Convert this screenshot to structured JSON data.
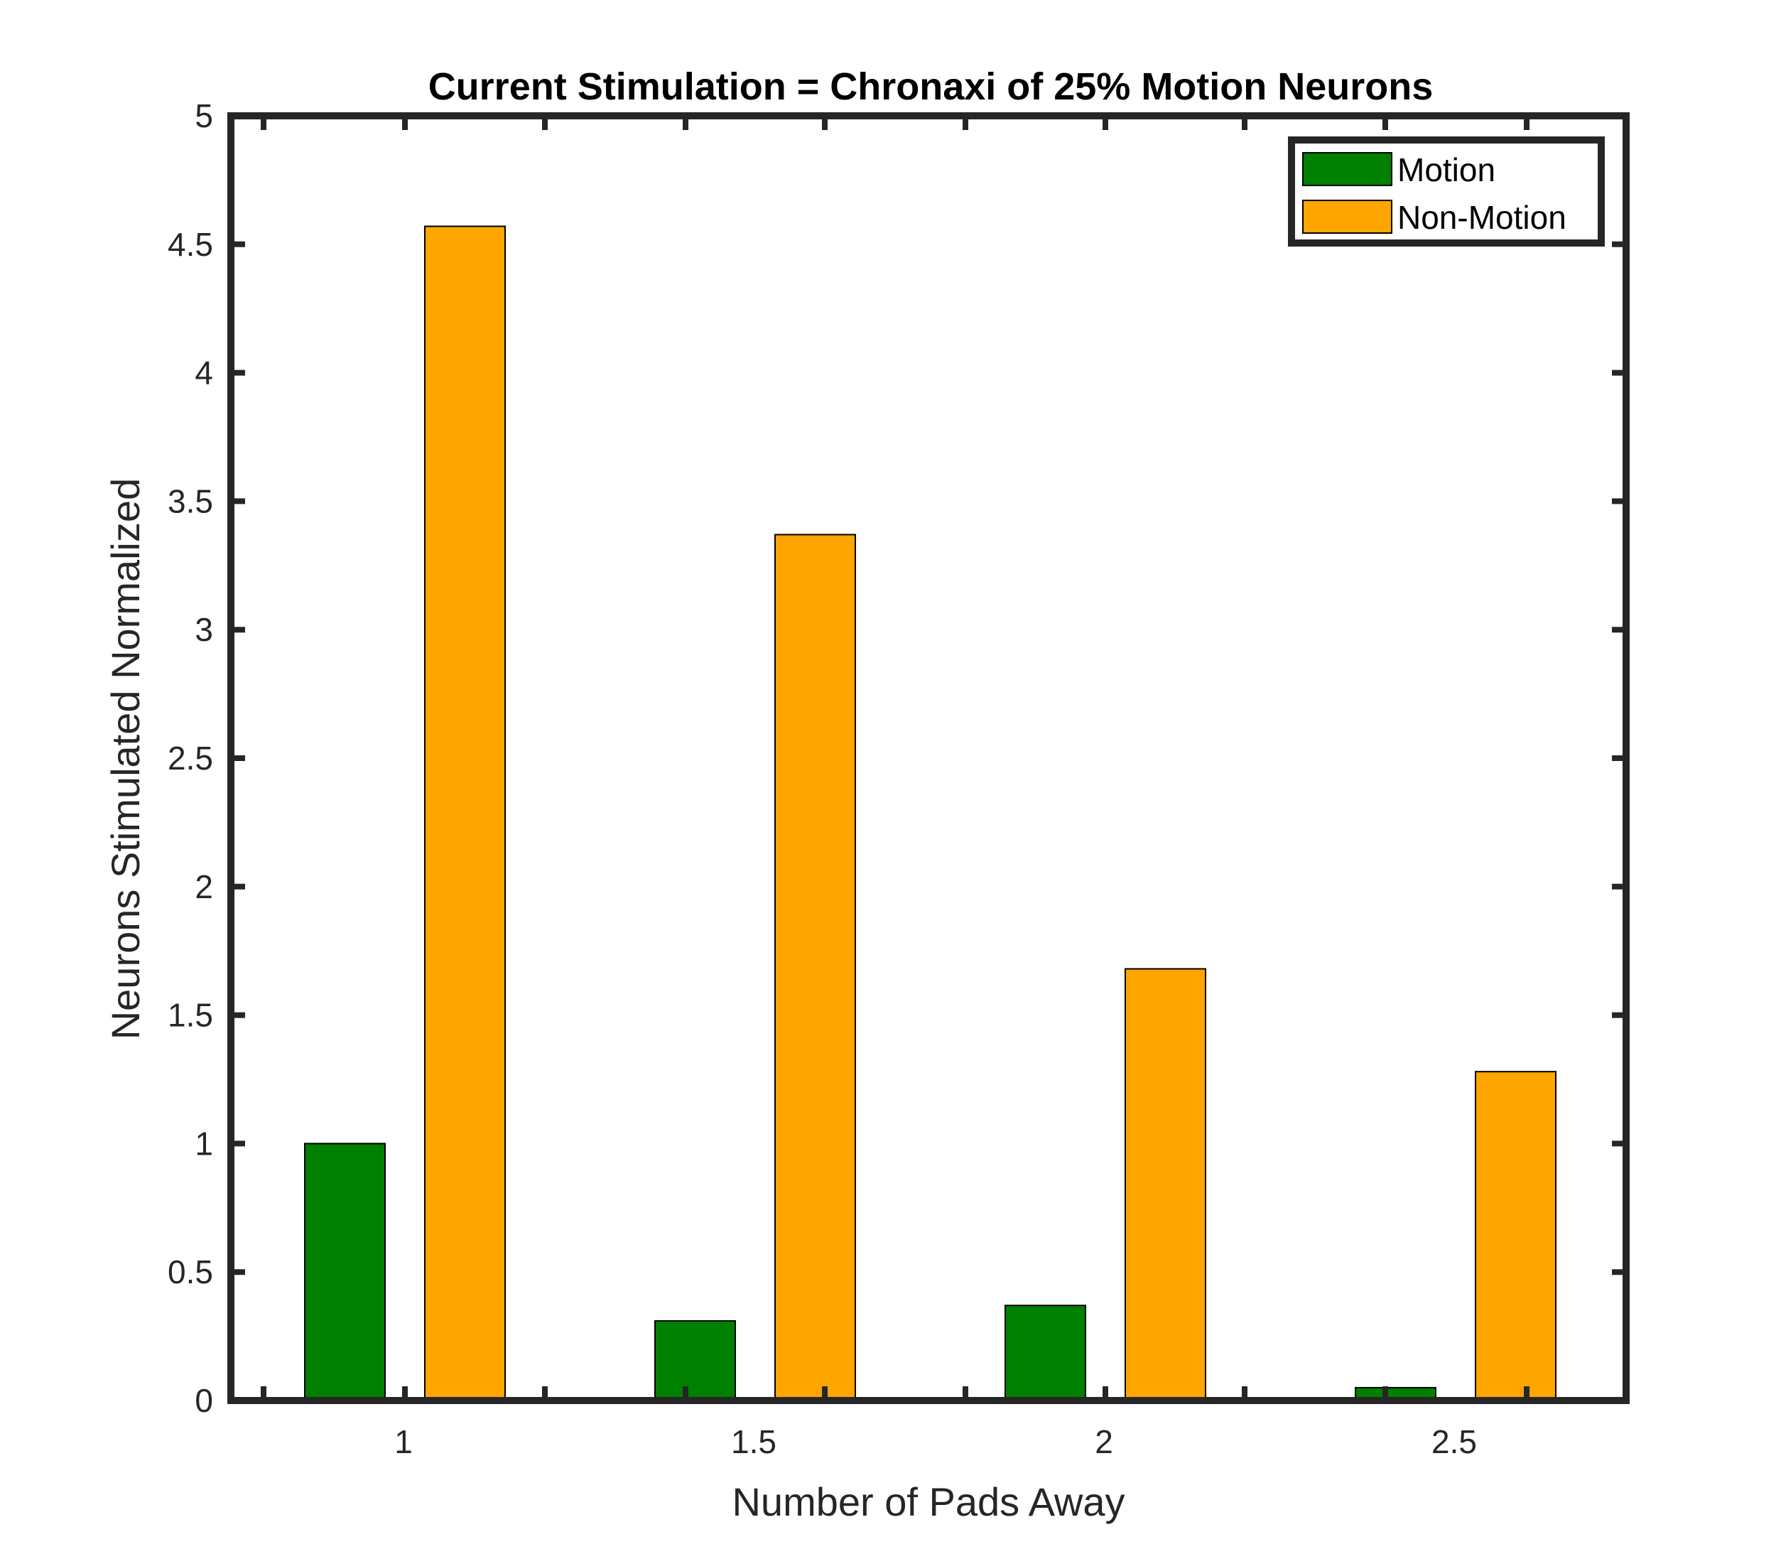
{
  "chart_data": {
    "type": "bar",
    "title": "Current Stimulation = Chronaxi of 25% Motion Neurons",
    "xlabel": "Number of Pads Away",
    "ylabel": "Neurons Stimulated Normalized",
    "categories": [
      "1",
      "1.5",
      "2",
      "2.5"
    ],
    "series": [
      {
        "name": "Motion",
        "color": "#008000",
        "values": [
          1.0,
          0.31,
          0.37,
          0.05
        ]
      },
      {
        "name": "Non-Motion",
        "color": "#FFA500",
        "values": [
          4.57,
          3.37,
          1.68,
          1.28
        ]
      }
    ],
    "yticks": [
      "0",
      "0.5",
      "1",
      "1.5",
      "2",
      "2.5",
      "3",
      "3.5",
      "4",
      "4.5",
      "5"
    ],
    "ylim": [
      0,
      5
    ],
    "grid": false,
    "legend_position": "top-right"
  }
}
